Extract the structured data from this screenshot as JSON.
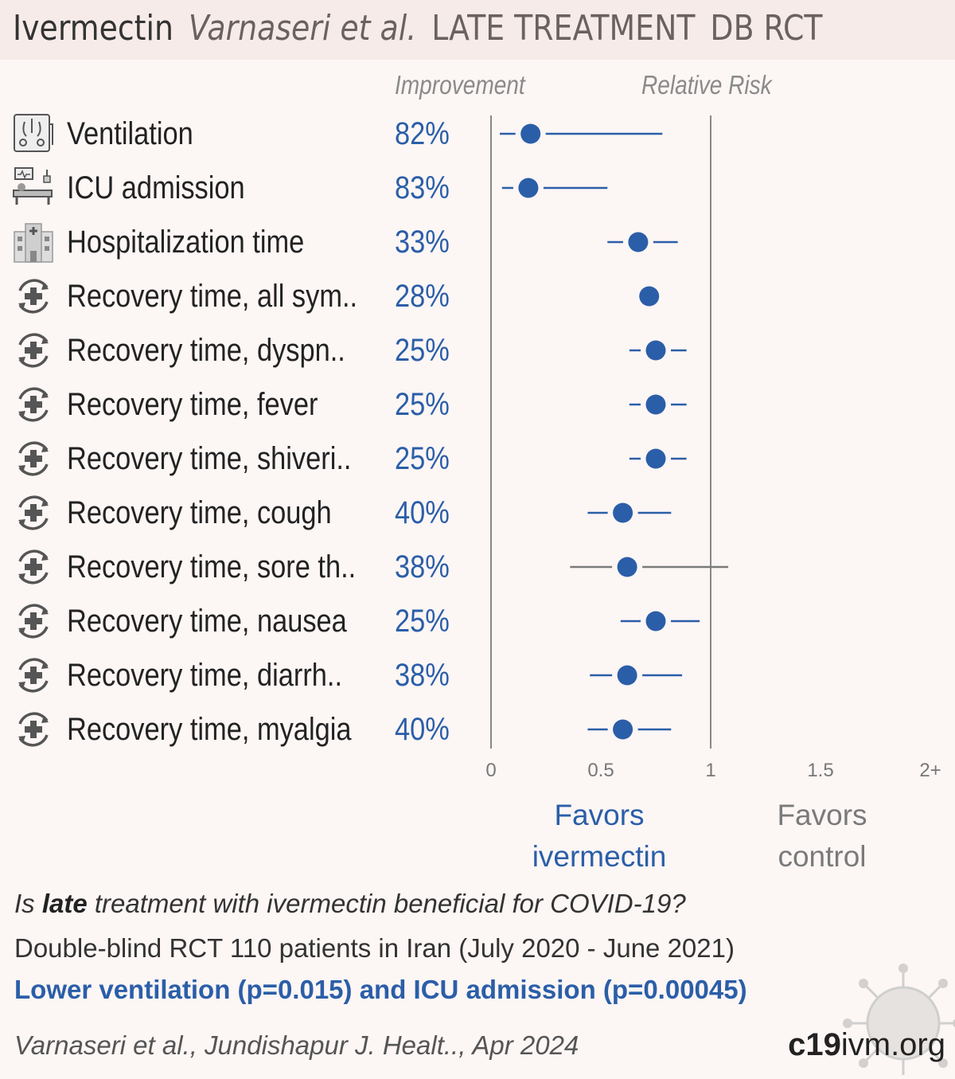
{
  "header": {
    "drug": "Ivermectin",
    "authors": "Varnaseri et al.",
    "stage": "LATE TREATMENT",
    "design": "DB RCT"
  },
  "columns": {
    "improvement": "Improvement",
    "relative_risk": "Relative Risk"
  },
  "chart_data": {
    "type": "forest",
    "x_ticks": [
      "0",
      "0.5",
      "1",
      "1.5",
      "2+"
    ],
    "xlim": [
      0,
      2
    ],
    "rows": [
      {
        "label": "Ventilation",
        "icon": "ventilator-icon",
        "improvement": "82%",
        "rr": 0.18,
        "ci": [
          0.04,
          0.78
        ],
        "ci_color": "#2b5ea8"
      },
      {
        "label": "ICU admission",
        "icon": "icu-bed-icon",
        "improvement": "83%",
        "rr": 0.17,
        "ci": [
          0.05,
          0.53
        ],
        "ci_color": "#2b5ea8"
      },
      {
        "label": "Hospitalization time",
        "icon": "hospital-icon",
        "improvement": "33%",
        "rr": 0.67,
        "ci": [
          0.53,
          0.85
        ],
        "ci_color": "#2b5ea8"
      },
      {
        "label": "Recovery time, all sym..",
        "icon": "recovery-icon",
        "improvement": "28%",
        "rr": 0.72,
        "ci": [
          0.72,
          0.72
        ],
        "ci_color": "#2b5ea8"
      },
      {
        "label": "Recovery time, dyspn..",
        "icon": "recovery-icon",
        "improvement": "25%",
        "rr": 0.75,
        "ci": [
          0.63,
          0.89
        ],
        "ci_color": "#2b5ea8"
      },
      {
        "label": "Recovery time, fever",
        "icon": "recovery-icon",
        "improvement": "25%",
        "rr": 0.75,
        "ci": [
          0.63,
          0.89
        ],
        "ci_color": "#2b5ea8"
      },
      {
        "label": "Recovery time, shiveri..",
        "icon": "recovery-icon",
        "improvement": "25%",
        "rr": 0.75,
        "ci": [
          0.63,
          0.89
        ],
        "ci_color": "#2b5ea8"
      },
      {
        "label": "Recovery time, cough",
        "icon": "recovery-icon",
        "improvement": "40%",
        "rr": 0.6,
        "ci": [
          0.44,
          0.82
        ],
        "ci_color": "#2b5ea8"
      },
      {
        "label": "Recovery time, sore th..",
        "icon": "recovery-icon",
        "improvement": "38%",
        "rr": 0.62,
        "ci": [
          0.36,
          1.08
        ],
        "ci_color": "#7a7a7a"
      },
      {
        "label": "Recovery time, nausea",
        "icon": "recovery-icon",
        "improvement": "25%",
        "rr": 0.75,
        "ci": [
          0.59,
          0.95
        ],
        "ci_color": "#2b5ea8"
      },
      {
        "label": "Recovery time, diarrh..",
        "icon": "recovery-icon",
        "improvement": "38%",
        "rr": 0.62,
        "ci": [
          0.45,
          0.87
        ],
        "ci_color": "#2b5ea8"
      },
      {
        "label": "Recovery time, myalgia",
        "icon": "recovery-icon",
        "improvement": "40%",
        "rr": 0.6,
        "ci": [
          0.44,
          0.82
        ],
        "ci_color": "#2b5ea8"
      }
    ]
  },
  "favors": {
    "treatment": "Favors ivermectin",
    "control": "Favors control"
  },
  "summary": {
    "question_pre": "Is ",
    "question_bold": "late",
    "question_post": " treatment with ivermectin beneficial for COVID-19?",
    "design_line": "Double-blind RCT 110 patients in Iran (July 2020 - June 2021)",
    "result": "Lower ventilation (p=0.015) and ICU admission (p=0.00045)",
    "citation": "Varnaseri et al., Jundishapur J. Healt.., Apr 2024",
    "site_bold": "c19",
    "site_rest": "ivm.org"
  },
  "colors": {
    "accent": "#2b5ea8",
    "neutral": "#7a7a7a",
    "background": "#fcf6f5",
    "header_bg": "#f6ebe8"
  }
}
